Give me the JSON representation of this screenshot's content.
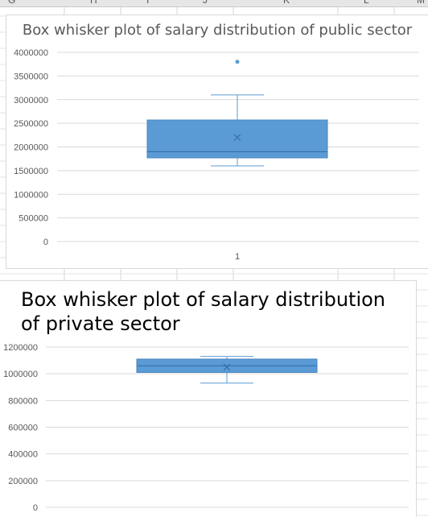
{
  "sheet": {
    "columns": [
      "G",
      "H",
      "I",
      "J",
      "K",
      "L",
      "M"
    ]
  },
  "chart_data": [
    {
      "type": "boxplot",
      "title": "Box whisker plot of salary distribution of public sector",
      "categories": [
        "1"
      ],
      "ylim": [
        0,
        4000000
      ],
      "yticks": [
        0,
        500000,
        1000000,
        1500000,
        2000000,
        2500000,
        3000000,
        3500000,
        4000000
      ],
      "grid": true,
      "box": {
        "min": 1600000,
        "q1": 1770000,
        "median": 1900000,
        "q3": 2570000,
        "max": 3100000,
        "mean": 2200000,
        "outliers": [
          3800000
        ]
      },
      "color": "#5b9bd5"
    },
    {
      "type": "boxplot",
      "title": "Box whisker plot of salary distribution of private sector",
      "categories": [],
      "ylim": [
        0,
        1200000
      ],
      "yticks": [
        0,
        200000,
        400000,
        600000,
        800000,
        1000000,
        1200000
      ],
      "grid": true,
      "box": {
        "min": 930000,
        "q1": 1010000,
        "median": 1060000,
        "q3": 1110000,
        "max": 1130000,
        "mean": 1050000,
        "outliers": []
      },
      "color": "#5b9bd5"
    }
  ]
}
